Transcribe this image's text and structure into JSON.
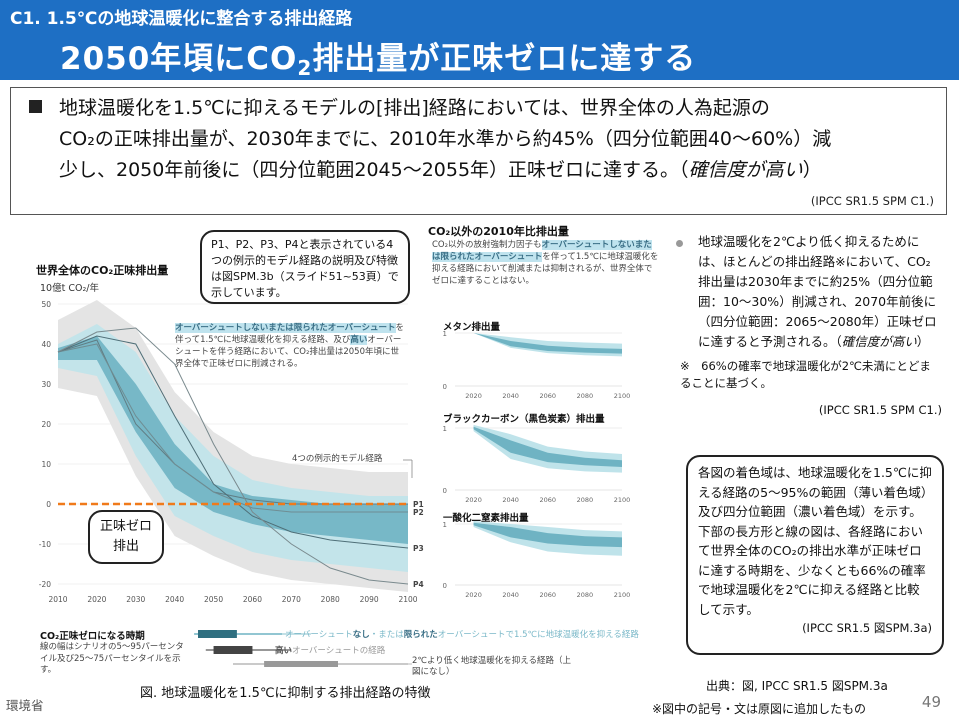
{
  "header": {
    "subtitle": "C1. 1.5℃の地球温暖化に整合する排出経路",
    "title_part1": "2050年頃にCO",
    "title_sub": "2",
    "title_part2": "排出量が正味ゼロに達する"
  },
  "summary": {
    "line1": "地球温暖化を1.5℃に抑えるモデルの[排出]経路においては、世界全体の人為起源の",
    "line2": "CO₂の正味排出量が、2030年までに、2010年水準から約45%（四分位範囲40〜60%）減",
    "line3": "少し、2050年前後に（四分位範囲2045〜2055年）正味ゼロに達する。（",
    "line3_italic": "確信度が高い",
    "line3_end": "）",
    "citation": "(IPCC SR1.5 SPM C1.)"
  },
  "main_chart_text": {
    "title": "世界全体のCO₂正味排出量",
    "unit": "10億t CO₂/年",
    "net_zero_label": "正味ゼロ\n排出",
    "example_label": "4つの例示的モデル経路",
    "overshoot_title": "オーバーシュートしないまたは限られたオーバーシュート",
    "overshoot_body": "を伴って1.5℃に地球温暖化を抑える経路、及び",
    "overshoot_high": "高い",
    "overshoot_body2": "オーバーシュートを伴う経路において、CO₂排出量は2050年頃に世界全体で正味ゼロに削減される。"
  },
  "callout_top": "P1、P2、P3、P4と表示されている4つの例示的モデル経路の説明及び特徴は図SPM.3b（スライド51~53頁）で示しています。",
  "non_co2": {
    "title": "CO₂以外の2010年比排出量",
    "desc1": "CO₂以外の放射強制力因子も",
    "desc_hl": "オーバーシュートしないまたは限られたオーバーシュート",
    "desc2": "を伴って1.5℃に地球温暖化を抑える経路において削減または抑制されるが、世界全体でゼロに達することはない。",
    "panels": [
      "メタン排出量",
      "ブラックカーボン（黒色炭素）排出量",
      "一酸化二窒素排出量"
    ]
  },
  "right_note": {
    "text": "地球温暖化を2℃より低く抑えるためには、ほとんどの排出経路※において、CO₂排出量は2030年までに約25%（四分位範囲：10〜30%）削減され、2070年前後に（四分位範囲：2065〜2080年）正味ゼロに達すると予測される。（",
    "italic": "確信度が高い",
    "end": "）",
    "asterisk_note": "※　66%の確率で地球温暖化が2℃未満にとどまることに基づく。",
    "citation": "(IPCC SR1.5 SPM C1.)"
  },
  "callout_right": {
    "text": "各図の着色域は、地球温暖化を1.5℃に抑える経路の5〜95%の範囲（薄い着色域）及び四分位範囲（濃い着色域）を示す。下部の長方形と線の図は、各経路において世界全体のCO₂の排出水準が正味ゼロに達する時期を、少なくとも66%の確率で地球温暖化を2℃に抑える経路と比較して示す。",
    "citation": "(IPCC SR1.5 図SPM.3a)"
  },
  "timing_legend": {
    "title": "CO₂正味ゼロになる時期",
    "desc": "線の幅はシナリオの5〜95パーセンタイル及び25〜75パーセンタイルを示す。",
    "row1_a": "オーバーシュート",
    "row1_b": "なし",
    "row1_c": "・または",
    "row1_d": "限られた",
    "row1_e": "オーバーシュートで1.5℃に地球温暖化を抑える経路",
    "row2_a": "高い",
    "row2_b": "オーバーシュートの経路",
    "row3": "2℃より低く地球温暖化を抑える経路（上図になし）"
  },
  "footer": {
    "caption": "図. 地球温暖化を1.5℃に抑制する排出経路の特徴",
    "source": "出典：図, IPCC SR1.5 図SPM.3a",
    "note": "※図中の記号・文は原図に追加したもの",
    "ministry": "環境省",
    "page": "49"
  },
  "colors": {
    "header_bg": "#1e6fc4",
    "band_light": "#bfe3ea",
    "band_dark": "#6fb3c3",
    "netzero_line": "#f07a1a",
    "highlight": "#bfe3ee"
  },
  "chart_data": [
    {
      "type": "area",
      "title": "世界全体のCO₂正味排出量",
      "ylabel": "10億t CO₂/年",
      "x": [
        2010,
        2020,
        2030,
        2040,
        2050,
        2060,
        2070,
        2080,
        2090,
        2100
      ],
      "ylim": [
        -20,
        50
      ],
      "yticks": [
        50,
        40,
        30,
        20,
        10,
        0,
        -10,
        -20
      ],
      "series": [
        {
          "name": "P1",
          "values": [
            38,
            41,
            20,
            10,
            3,
            1,
            0,
            0,
            0,
            0
          ]
        },
        {
          "name": "P2",
          "values": [
            38,
            40,
            22,
            10,
            3,
            -1,
            -2,
            -2,
            -2,
            -2
          ]
        },
        {
          "name": "P3",
          "values": [
            38,
            42,
            40,
            22,
            5,
            -3,
            -7,
            -9,
            -10,
            -11
          ]
        },
        {
          "name": "P4",
          "values": [
            38,
            43,
            44,
            35,
            15,
            -2,
            -10,
            -16,
            -19,
            -20
          ]
        }
      ],
      "band_5_95_low": [
        34,
        32,
        12,
        -3,
        -8,
        -12,
        -14,
        -15,
        -16,
        -17
      ],
      "band_5_95_high": [
        40,
        45,
        38,
        22,
        12,
        6,
        4,
        3,
        2,
        2
      ],
      "band_25_75_low": [
        36,
        36,
        18,
        4,
        -2,
        -5,
        -7,
        -8,
        -9,
        -10
      ],
      "band_25_75_high": [
        39,
        42,
        30,
        15,
        5,
        2,
        1,
        0,
        0,
        0
      ],
      "net_zero": 0
    },
    {
      "type": "area",
      "title": "メタン排出量",
      "x": [
        2020,
        2040,
        2060,
        2080,
        2100
      ],
      "yticks": [
        1,
        0
      ],
      "band_light": [
        [
          1.0,
          1.0
        ],
        [
          0.72,
          0.92
        ],
        [
          0.62,
          0.85
        ],
        [
          0.58,
          0.82
        ],
        [
          0.56,
          0.8
        ]
      ],
      "band_dark": [
        [
          1.0,
          1.0
        ],
        [
          0.75,
          0.85
        ],
        [
          0.66,
          0.76
        ],
        [
          0.63,
          0.72
        ],
        [
          0.61,
          0.7
        ]
      ]
    },
    {
      "type": "area",
      "title": "ブラックカーボン（黒色炭素）排出量",
      "x": [
        2020,
        2040,
        2060,
        2080,
        2100
      ],
      "yticks": [
        1,
        0
      ],
      "band_light": [
        [
          0.95,
          1.05
        ],
        [
          0.5,
          0.9
        ],
        [
          0.35,
          0.7
        ],
        [
          0.3,
          0.62
        ],
        [
          0.28,
          0.58
        ]
      ],
      "band_dark": [
        [
          0.98,
          1.02
        ],
        [
          0.6,
          0.8
        ],
        [
          0.45,
          0.6
        ],
        [
          0.4,
          0.52
        ],
        [
          0.37,
          0.48
        ]
      ]
    },
    {
      "type": "area",
      "title": "一酸化二窒素排出量",
      "x": [
        2020,
        2040,
        2060,
        2080,
        2100
      ],
      "yticks": [
        1,
        0
      ],
      "band_light": [
        [
          0.95,
          1.05
        ],
        [
          0.7,
          1.0
        ],
        [
          0.55,
          0.95
        ],
        [
          0.5,
          0.9
        ],
        [
          0.48,
          0.88
        ]
      ],
      "band_dark": [
        [
          0.98,
          1.02
        ],
        [
          0.78,
          0.95
        ],
        [
          0.68,
          0.85
        ],
        [
          0.64,
          0.8
        ],
        [
          0.62,
          0.78
        ]
      ]
    }
  ]
}
